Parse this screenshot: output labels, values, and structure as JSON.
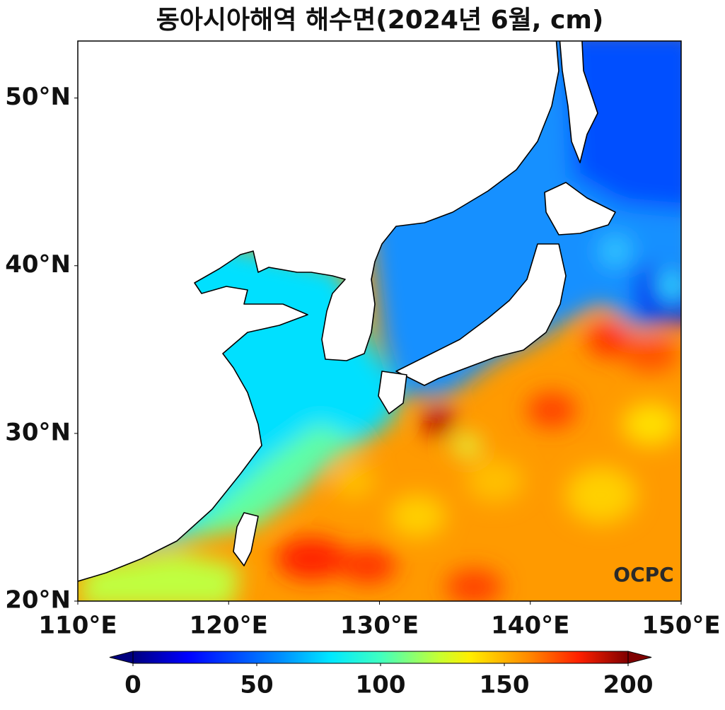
{
  "title": "동아시아해역 해수면(2024년 6월, cm)",
  "map": {
    "xlim": [
      110,
      150
    ],
    "ylim": [
      20,
      53.4
    ],
    "xticks": [
      {
        "value": 110,
        "label": "110°E"
      },
      {
        "value": 120,
        "label": "120°E"
      },
      {
        "value": 130,
        "label": "130°E"
      },
      {
        "value": 140,
        "label": "140°E"
      },
      {
        "value": 150,
        "label": "150°E"
      }
    ],
    "yticks": [
      {
        "value": 20,
        "label": "20°N"
      },
      {
        "value": 30,
        "label": "30°N"
      },
      {
        "value": 40,
        "label": "40°N"
      },
      {
        "value": 50,
        "label": "50°N"
      }
    ]
  },
  "colorbar": {
    "lim": [
      0,
      200
    ],
    "ticks": [
      0,
      50,
      100,
      150,
      200
    ]
  },
  "logo": "OCPC"
}
